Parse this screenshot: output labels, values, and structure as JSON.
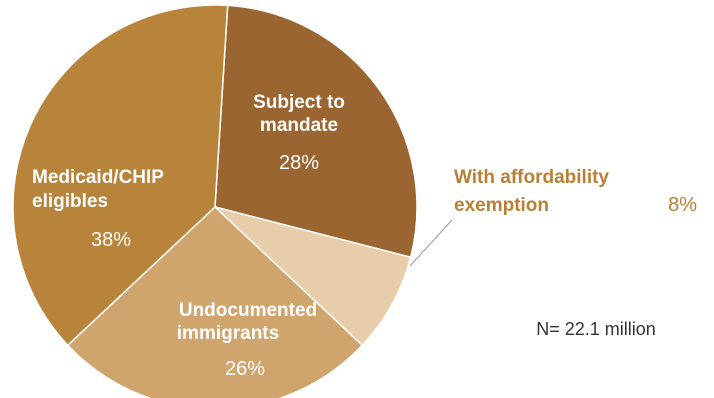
{
  "chart_data": {
    "type": "pie",
    "slices": [
      {
        "label_lines": [
          "Subject to",
          "mandate"
        ],
        "value": 28,
        "value_label": "28%",
        "color": "#9a6530"
      },
      {
        "label_lines": [
          "With affordability",
          "exemption"
        ],
        "value": 8,
        "value_label": "8%",
        "color": "#e8cdaa"
      },
      {
        "label_lines": [
          "Undocumented",
          "immigrants"
        ],
        "value": 26,
        "value_label": "26%",
        "color": "#d0a46d"
      },
      {
        "label_lines": [
          "Medicaid/CHIP",
          "eligibles"
        ],
        "value": 38,
        "value_label": "38%",
        "color": "#b8843c"
      }
    ],
    "annotation": "N= 22.1 million",
    "colors": {
      "slice_border": "#ffffff",
      "inside_label": "#ffffff",
      "outside_label": "#b97f33",
      "annotation": "#333333",
      "leader": "#999999"
    }
  }
}
